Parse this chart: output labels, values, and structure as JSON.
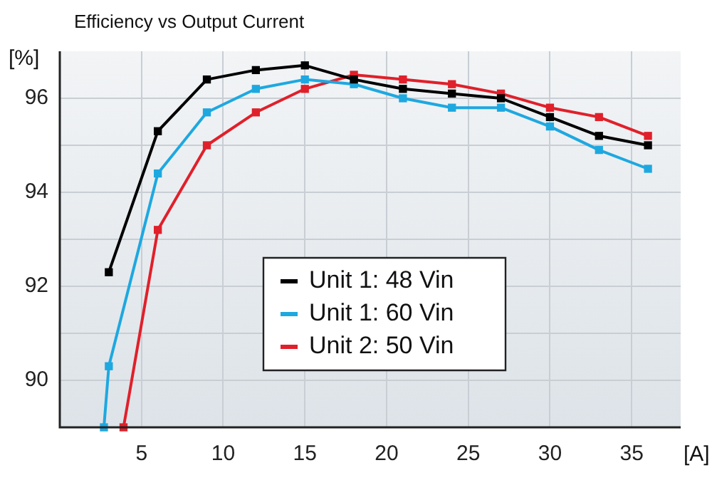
{
  "chart_data": {
    "type": "line",
    "title": "Efficiency vs Output Current",
    "xlabel": "[A]",
    "ylabel": "[%]",
    "xlim": [
      0,
      38
    ],
    "xticks": [
      5,
      10,
      15,
      20,
      25,
      30,
      35
    ],
    "ylim": [
      89,
      97
    ],
    "yticks": [
      {
        "value": 90,
        "label": "90"
      },
      {
        "value": 91,
        "label": null
      },
      {
        "value": 92,
        "label": "92"
      },
      {
        "value": 93,
        "label": null
      },
      {
        "value": 94,
        "label": "94"
      },
      {
        "value": 95,
        "label": null
      },
      {
        "value": 96,
        "label": "96"
      }
    ],
    "grid": true,
    "legend": "bottom",
    "marker": "square",
    "line_style": "solid",
    "series": [
      {
        "name": "Unit 1: 48 Vin",
        "color": "#000000",
        "x": [
          3,
          6,
          9,
          12,
          15,
          18,
          21,
          24,
          27,
          30,
          33,
          36
        ],
        "values": [
          92.3,
          95.3,
          96.4,
          96.6,
          96.7,
          96.4,
          96.2,
          96.1,
          96.0,
          95.6,
          95.2,
          95.0
        ]
      },
      {
        "name": "Unit 1: 60 Vin",
        "color": "#1ea8e0",
        "x": [
          2.7,
          3,
          6,
          9,
          12,
          15,
          18,
          21,
          24,
          27,
          30,
          33,
          36
        ],
        "values": [
          89,
          90.3,
          94.4,
          95.7,
          96.2,
          96.4,
          96.3,
          96.0,
          95.8,
          95.8,
          95.4,
          94.9,
          94.5
        ]
      },
      {
        "name": "Unit 2: 50 Vin",
        "color": "#e0202a",
        "x": [
          3.9,
          6,
          9,
          12,
          15,
          18,
          21,
          24,
          27,
          30,
          33,
          36
        ],
        "values": [
          89,
          93.2,
          95.0,
          95.7,
          96.2,
          96.5,
          96.4,
          96.3,
          96.1,
          95.8,
          95.6,
          95.2
        ]
      }
    ]
  }
}
